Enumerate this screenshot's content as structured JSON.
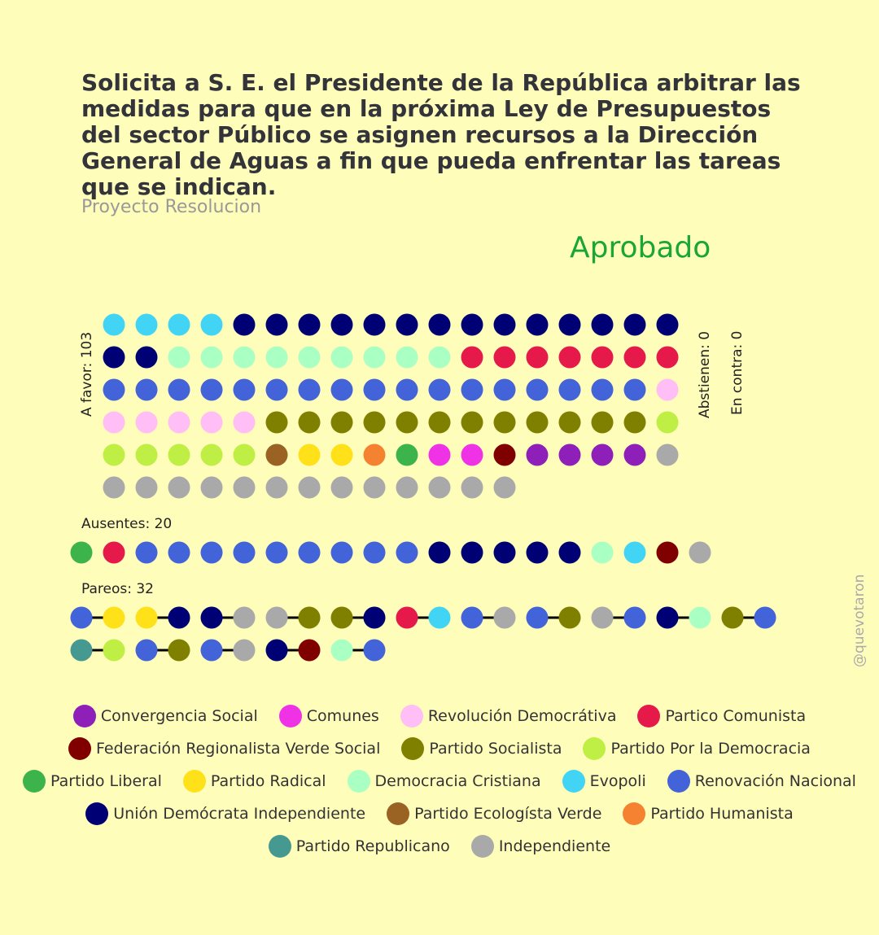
{
  "title": "Solicita a S. E. el Presidente de la República arbitrar las medidas para que en la próxima Ley de Presupuestos del sector Público se asignen recursos a la Dirección General de Aguas a fin que pueda enfrentar las tareas que se indican.",
  "subtitle": "Proyecto Resolucion",
  "result": "Aprobado",
  "watermark": "@quevotaron",
  "colors": {
    "CS": "#8E1FB8",
    "COM": "#F032E6",
    "RD": "#FFBEF5",
    "PC": "#E6194B",
    "FRVS": "#800000",
    "PS": "#808000",
    "PPD": "#BFEF45",
    "PL": "#3CB44B",
    "PR": "#FFE119",
    "DC": "#AAFFC3",
    "EVO": "#42D4F4",
    "RN": "#4363D8",
    "UDI": "#000075",
    "PEV": "#9A6324",
    "PH": "#F58231",
    "REP": "#469990",
    "IND": "#A9A9A9"
  },
  "chart_data": {
    "type": "dot-matrix",
    "labels": {
      "favor": "A favor: 103",
      "abstienen": "Abstienen: 0",
      "contra": "En contra: 0",
      "ausentes": "Ausentes: 20",
      "pareos": "Pareos: 32"
    },
    "favor_rows": [
      [
        "EVO",
        "EVO",
        "EVO",
        "EVO",
        "UDI",
        "UDI",
        "UDI",
        "UDI",
        "UDI",
        "UDI",
        "UDI",
        "UDI",
        "UDI",
        "UDI",
        "UDI",
        "UDI",
        "UDI",
        "UDI"
      ],
      [
        "UDI",
        "UDI",
        "DC",
        "DC",
        "DC",
        "DC",
        "DC",
        "DC",
        "DC",
        "DC",
        "DC",
        "PC",
        "PC",
        "PC",
        "PC",
        "PC",
        "PC",
        "PC"
      ],
      [
        "RN",
        "RN",
        "RN",
        "RN",
        "RN",
        "RN",
        "RN",
        "RN",
        "RN",
        "RN",
        "RN",
        "RN",
        "RN",
        "RN",
        "RN",
        "RN",
        "RN",
        "RD"
      ],
      [
        "RD",
        "RD",
        "RD",
        "RD",
        "RD",
        "PS",
        "PS",
        "PS",
        "PS",
        "PS",
        "PS",
        "PS",
        "PS",
        "PS",
        "PS",
        "PS",
        "PS",
        "PPD"
      ],
      [
        "PPD",
        "PPD",
        "PPD",
        "PPD",
        "PPD",
        "PEV",
        "PR",
        "PR",
        "PH",
        "PL",
        "COM",
        "COM",
        "FRVS",
        "CS",
        "CS",
        "CS",
        "CS",
        "IND"
      ],
      [
        "IND",
        "IND",
        "IND",
        "IND",
        "IND",
        "IND",
        "IND",
        "IND",
        "IND",
        "IND",
        "IND",
        "IND",
        "IND"
      ]
    ],
    "ausentes": [
      "PL",
      "PC",
      "RN",
      "RN",
      "RN",
      "RN",
      "RN",
      "RN",
      "RN",
      "RN",
      "RN",
      "UDI",
      "UDI",
      "UDI",
      "UDI",
      "UDI",
      "DC",
      "EVO",
      "FRVS",
      "IND"
    ],
    "pareos_rows": [
      [
        [
          "RN",
          "PR"
        ],
        [
          "PR",
          "UDI"
        ],
        [
          "UDI",
          "IND"
        ],
        [
          "IND",
          "PS"
        ],
        [
          "PS",
          "UDI"
        ],
        [
          "PC",
          "EVO"
        ],
        [
          "RN",
          "IND"
        ],
        [
          "RN",
          "PS"
        ],
        [
          "IND",
          "RN"
        ],
        [
          "UDI",
          "DC"
        ],
        [
          "PS",
          "RN"
        ]
      ],
      [
        [
          "REP",
          "PPD"
        ],
        [
          "RN",
          "PS"
        ],
        [
          "RN",
          "IND"
        ],
        [
          "UDI",
          "FRVS"
        ],
        [
          "DC",
          "RN"
        ]
      ]
    ]
  },
  "legend": [
    [
      {
        "label": "Convergencia Social",
        "color": "CS"
      },
      {
        "label": "Comunes",
        "color": "COM"
      },
      {
        "label": "Revolución Democrátiva",
        "color": "RD"
      },
      {
        "label": "Partico Comunista",
        "color": "PC"
      }
    ],
    [
      {
        "label": "Federación Regionalista Verde Social",
        "color": "FRVS"
      },
      {
        "label": "Partido Socialista",
        "color": "PS"
      },
      {
        "label": "Partido Por la Democracia",
        "color": "PPD"
      }
    ],
    [
      {
        "label": "Partido Liberal",
        "color": "PL"
      },
      {
        "label": "Partido Radical",
        "color": "PR"
      },
      {
        "label": "Democracia Cristiana",
        "color": "DC"
      },
      {
        "label": "Evopoli",
        "color": "EVO"
      },
      {
        "label": "Renovación Nacional",
        "color": "RN"
      }
    ],
    [
      {
        "label": "Unión Demócrata Independiente",
        "color": "UDI"
      },
      {
        "label": "Partido Ecologísta Verde",
        "color": "PEV"
      },
      {
        "label": "Partido Humanista",
        "color": "PH"
      }
    ],
    [
      {
        "label": "Partido Republicano",
        "color": "REP"
      },
      {
        "label": "Independiente",
        "color": "IND"
      }
    ]
  ]
}
